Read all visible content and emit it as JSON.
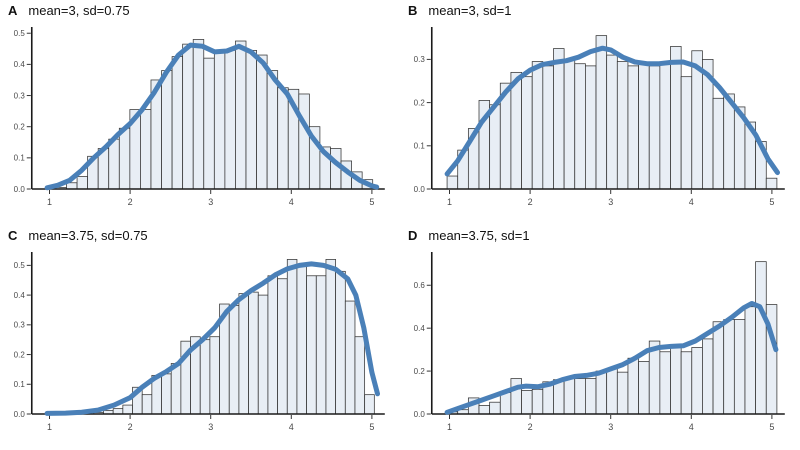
{
  "colors": {
    "background": "#ffffff",
    "bar_fill": "#e8eef5",
    "bar_stroke": "#333333",
    "curve": "#4a80b8",
    "axis": "#1a1a1a",
    "tick": "#333333",
    "tick_label": "#4a4a4a",
    "title": "#111111"
  },
  "chart_data": [
    {
      "type": "bar",
      "subtype": "histogram-with-density",
      "panel": "A",
      "title": "mean=3, sd=0.75",
      "xlim": [
        0.78,
        5.16
      ],
      "ylim": [
        0,
        0.52
      ],
      "xticks": [
        "1",
        "2",
        "3",
        "4",
        "5"
      ],
      "yticks": [
        "0.0",
        "0.1",
        "0.2",
        "0.3",
        "0.4",
        "0.5"
      ],
      "grid": false,
      "legend": "none",
      "bins": {
        "start": 1.08,
        "width": 0.131,
        "heights": [
          0.005,
          0.02,
          0.04,
          0.105,
          0.13,
          0.16,
          0.195,
          0.255,
          0.255,
          0.35,
          0.38,
          0.425,
          0.465,
          0.48,
          0.42,
          0.44,
          0.445,
          0.475,
          0.445,
          0.43,
          0.38,
          0.325,
          0.32,
          0.305,
          0.2,
          0.135,
          0.13,
          0.09,
          0.055,
          0.03
        ]
      },
      "density": [
        [
          0.97,
          0.004
        ],
        [
          1.1,
          0.012
        ],
        [
          1.25,
          0.028
        ],
        [
          1.4,
          0.06
        ],
        [
          1.55,
          0.1
        ],
        [
          1.7,
          0.135
        ],
        [
          1.85,
          0.175
        ],
        [
          2.0,
          0.21
        ],
        [
          2.15,
          0.255
        ],
        [
          2.3,
          0.31
        ],
        [
          2.45,
          0.375
        ],
        [
          2.6,
          0.43
        ],
        [
          2.75,
          0.462
        ],
        [
          2.9,
          0.458
        ],
        [
          3.05,
          0.44
        ],
        [
          3.2,
          0.443
        ],
        [
          3.35,
          0.458
        ],
        [
          3.5,
          0.44
        ],
        [
          3.65,
          0.405
        ],
        [
          3.8,
          0.35
        ],
        [
          3.95,
          0.305
        ],
        [
          4.1,
          0.235
        ],
        [
          4.25,
          0.17
        ],
        [
          4.4,
          0.12
        ],
        [
          4.55,
          0.085
        ],
        [
          4.7,
          0.055
        ],
        [
          4.85,
          0.028
        ],
        [
          5.0,
          0.01
        ],
        [
          5.06,
          0.006
        ]
      ]
    },
    {
      "type": "bar",
      "subtype": "histogram-with-density",
      "panel": "B",
      "title": "mean=3, sd=1",
      "xlim": [
        0.78,
        5.16
      ],
      "ylim": [
        0,
        0.375
      ],
      "xticks": [
        "1",
        "2",
        "3",
        "4",
        "5"
      ],
      "yticks": [
        "0.0",
        "0.1",
        "0.2",
        "0.3"
      ],
      "grid": false,
      "legend": "none",
      "bins": {
        "start": 0.97,
        "width": 0.132,
        "heights": [
          0.03,
          0.09,
          0.14,
          0.205,
          0.195,
          0.245,
          0.27,
          0.26,
          0.295,
          0.285,
          0.325,
          0.3,
          0.29,
          0.285,
          0.355,
          0.31,
          0.295,
          0.285,
          0.29,
          0.285,
          0.29,
          0.33,
          0.26,
          0.32,
          0.3,
          0.21,
          0.22,
          0.19,
          0.155,
          0.11,
          0.025
        ]
      },
      "density": [
        [
          0.97,
          0.035
        ],
        [
          1.1,
          0.065
        ],
        [
          1.25,
          0.11
        ],
        [
          1.4,
          0.155
        ],
        [
          1.55,
          0.19
        ],
        [
          1.7,
          0.225
        ],
        [
          1.85,
          0.255
        ],
        [
          2.0,
          0.275
        ],
        [
          2.15,
          0.288
        ],
        [
          2.3,
          0.293
        ],
        [
          2.45,
          0.297
        ],
        [
          2.6,
          0.305
        ],
        [
          2.75,
          0.318
        ],
        [
          2.9,
          0.326
        ],
        [
          3.0,
          0.322
        ],
        [
          3.15,
          0.305
        ],
        [
          3.3,
          0.294
        ],
        [
          3.45,
          0.29
        ],
        [
          3.6,
          0.29
        ],
        [
          3.75,
          0.293
        ],
        [
          3.9,
          0.294
        ],
        [
          4.05,
          0.285
        ],
        [
          4.2,
          0.265
        ],
        [
          4.35,
          0.235
        ],
        [
          4.5,
          0.2
        ],
        [
          4.65,
          0.165
        ],
        [
          4.8,
          0.125
        ],
        [
          4.95,
          0.07
        ],
        [
          5.07,
          0.038
        ]
      ]
    },
    {
      "type": "bar",
      "subtype": "histogram-with-density",
      "panel": "C",
      "title": "mean=3.75, sd=0.75",
      "xlim": [
        0.78,
        5.16
      ],
      "ylim": [
        0,
        0.545
      ],
      "xticks": [
        "1",
        "2",
        "3",
        "4",
        "5"
      ],
      "yticks": [
        "0.0",
        "0.1",
        "0.2",
        "0.3",
        "0.4",
        "0.5"
      ],
      "grid": false,
      "legend": "none",
      "bins": {
        "start": 1.55,
        "width": 0.12,
        "heights": [
          0.005,
          0.012,
          0.018,
          0.03,
          0.09,
          0.065,
          0.13,
          0.135,
          0.17,
          0.245,
          0.26,
          0.25,
          0.26,
          0.37,
          0.365,
          0.405,
          0.41,
          0.4,
          0.465,
          0.455,
          0.52,
          0.5,
          0.465,
          0.465,
          0.52,
          0.48,
          0.38,
          0.26,
          0.065
        ]
      },
      "density": [
        [
          0.97,
          0.002
        ],
        [
          1.2,
          0.003
        ],
        [
          1.4,
          0.006
        ],
        [
          1.6,
          0.013
        ],
        [
          1.8,
          0.03
        ],
        [
          2.0,
          0.055
        ],
        [
          2.15,
          0.09
        ],
        [
          2.3,
          0.12
        ],
        [
          2.45,
          0.143
        ],
        [
          2.6,
          0.17
        ],
        [
          2.75,
          0.215
        ],
        [
          2.9,
          0.25
        ],
        [
          3.05,
          0.29
        ],
        [
          3.2,
          0.345
        ],
        [
          3.35,
          0.385
        ],
        [
          3.5,
          0.415
        ],
        [
          3.65,
          0.44
        ],
        [
          3.8,
          0.468
        ],
        [
          3.95,
          0.488
        ],
        [
          4.1,
          0.5
        ],
        [
          4.25,
          0.505
        ],
        [
          4.4,
          0.5
        ],
        [
          4.55,
          0.487
        ],
        [
          4.7,
          0.455
        ],
        [
          4.8,
          0.4
        ],
        [
          4.9,
          0.29
        ],
        [
          5.0,
          0.14
        ],
        [
          5.07,
          0.068
        ]
      ]
    },
    {
      "type": "bar",
      "subtype": "histogram-with-density",
      "panel": "D",
      "title": "mean=3.75, sd=1",
      "xlim": [
        0.78,
        5.16
      ],
      "ylim": [
        0,
        0.755
      ],
      "xticks": [
        "1",
        "2",
        "3",
        "4",
        "5"
      ],
      "yticks": [
        "0.0",
        "0.2",
        "0.4",
        "0.6"
      ],
      "grid": false,
      "legend": "none",
      "bins": {
        "start": 0.97,
        "width": 0.132,
        "heights": [
          0.01,
          0.02,
          0.075,
          0.04,
          0.055,
          0.1,
          0.165,
          0.11,
          0.115,
          0.15,
          0.16,
          0.17,
          0.165,
          0.165,
          0.2,
          0.21,
          0.195,
          0.26,
          0.245,
          0.34,
          0.29,
          0.31,
          0.29,
          0.31,
          0.35,
          0.43,
          0.44,
          0.44,
          0.5,
          0.71,
          0.51
        ]
      },
      "density": [
        [
          0.97,
          0.008
        ],
        [
          1.1,
          0.025
        ],
        [
          1.25,
          0.045
        ],
        [
          1.4,
          0.065
        ],
        [
          1.55,
          0.085
        ],
        [
          1.7,
          0.105
        ],
        [
          1.85,
          0.125
        ],
        [
          1.95,
          0.13
        ],
        [
          2.1,
          0.127
        ],
        [
          2.25,
          0.14
        ],
        [
          2.4,
          0.16
        ],
        [
          2.55,
          0.175
        ],
        [
          2.7,
          0.18
        ],
        [
          2.85,
          0.19
        ],
        [
          3.0,
          0.21
        ],
        [
          3.15,
          0.23
        ],
        [
          3.3,
          0.26
        ],
        [
          3.45,
          0.295
        ],
        [
          3.6,
          0.31
        ],
        [
          3.75,
          0.315
        ],
        [
          3.9,
          0.318
        ],
        [
          4.05,
          0.34
        ],
        [
          4.2,
          0.375
        ],
        [
          4.35,
          0.41
        ],
        [
          4.5,
          0.45
        ],
        [
          4.65,
          0.495
        ],
        [
          4.75,
          0.515
        ],
        [
          4.85,
          0.5
        ],
        [
          4.95,
          0.42
        ],
        [
          5.05,
          0.3
        ]
      ]
    }
  ]
}
